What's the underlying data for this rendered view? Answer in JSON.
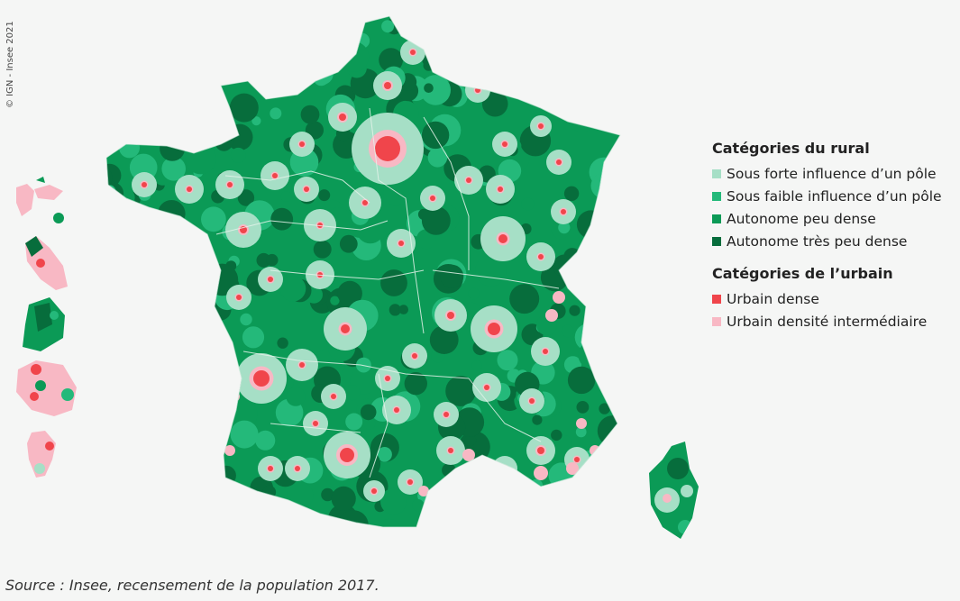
{
  "copyright": "© IGN - Insee 2021",
  "legend": {
    "groups": [
      {
        "title": "Catégories du rural",
        "items": [
          {
            "label": "Sous forte influence d’un pôle",
            "color": "#a6dfc6"
          },
          {
            "label": "Sous faible influence d’un pôle",
            "color": "#24b97a"
          },
          {
            "label": "Autonome peu dense",
            "color": "#0b9a56"
          },
          {
            "label": "Autonome très peu dense",
            "color": "#076d3c"
          }
        ]
      },
      {
        "title": "Catégories de l’urbain",
        "items": [
          {
            "label": "Urbain dense",
            "color": "#f0454b"
          },
          {
            "label": "Urbain densité intermédiaire",
            "color": "#f8b8c4"
          }
        ]
      }
    ]
  },
  "source": "Source : Insee, recensement de la population 2017."
}
